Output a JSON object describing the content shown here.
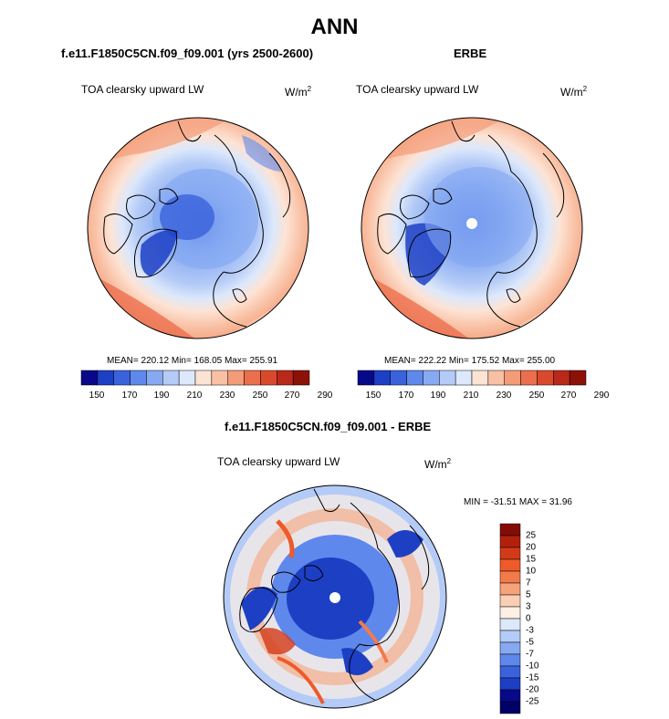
{
  "page_title": "ANN",
  "panels": [
    {
      "case_title": "f.e11.F1850C5CN.f09_f09.001 (yrs 2500-2600)",
      "variable": "TOA clearsky upward LW",
      "units_base": "W/m",
      "units_exp": "2",
      "stats": "MEAN= 220.12  Min= 168.05  Max= 255.91",
      "colorbar_ticks": [
        "150",
        "170",
        "190",
        "210",
        "230",
        "250",
        "270",
        "290"
      ]
    },
    {
      "case_title": "ERBE",
      "variable": "TOA clearsky upward LW",
      "units_base": "W/m",
      "units_exp": "2",
      "stats": "MEAN= 222.22  Min= 175.52  Max= 255.00",
      "colorbar_ticks": [
        "150",
        "170",
        "190",
        "210",
        "230",
        "250",
        "270",
        "290"
      ]
    },
    {
      "case_title": "f.e11.F1850C5CN.f09_f09.001 - ERBE",
      "variable": "TOA clearsky upward LW",
      "units_base": "W/m",
      "units_exp": "2",
      "stats": "MIN = -31.51 MAX =  31.96",
      "colorbar_ticks": [
        "25",
        "20",
        "15",
        "10",
        "7",
        "5",
        "3",
        "0",
        "-3",
        "-5",
        "-7",
        "-10",
        "-15",
        "-20",
        "-25"
      ]
    }
  ],
  "colors": {
    "abs_scale": [
      "#08088a",
      "#1d3fc4",
      "#3a62dc",
      "#5f88ec",
      "#86a9f2",
      "#b4cbf7",
      "#dde8fb",
      "#fde3d4",
      "#f9c0a4",
      "#f49b78",
      "#ec6f4d",
      "#d94a2c",
      "#b9291a",
      "#8c1208"
    ],
    "diff_scale": [
      "#840c06",
      "#b3200e",
      "#d33a18",
      "#ee5a2a",
      "#f37a4a",
      "#f7a37a",
      "#fbcfb4",
      "#fdf0e4",
      "#dde8fb",
      "#b4cbf7",
      "#86a9f2",
      "#5f88ec",
      "#3a62dc",
      "#1d3fc4",
      "#08088a",
      "#000066"
    ]
  }
}
